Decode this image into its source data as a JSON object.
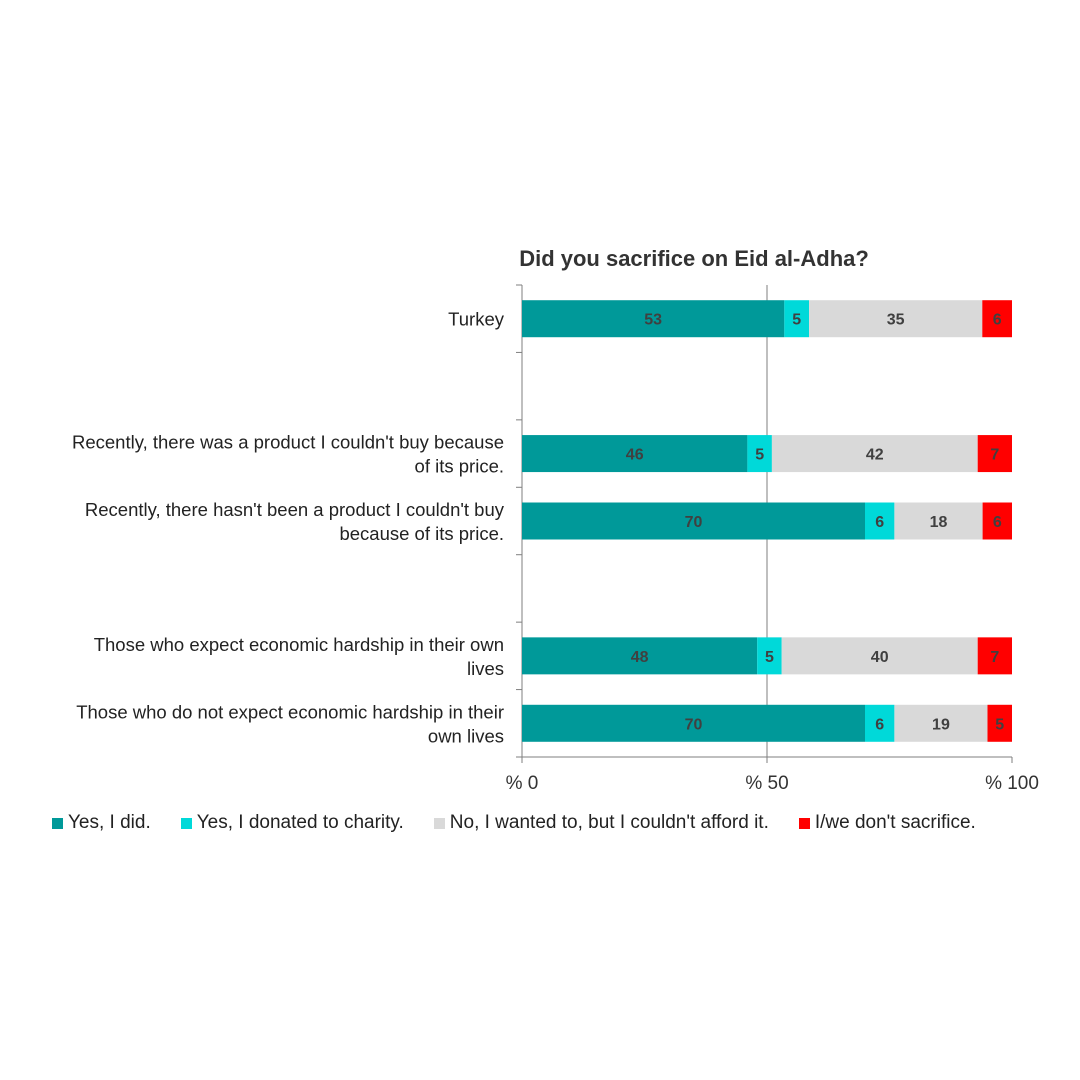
{
  "chart_data": {
    "type": "bar",
    "orientation": "horizontal",
    "stacked": true,
    "title": "Did you sacrifice on Eid al-Adha?",
    "xlabel": "",
    "ylabel": "",
    "xlim": [
      0,
      100
    ],
    "x_ticks": [
      {
        "value": 0,
        "label": "% 0"
      },
      {
        "value": 50,
        "label": "% 50"
      },
      {
        "value": 100,
        "label": "% 100"
      }
    ],
    "grid": "vertical line at 50",
    "legend_position": "bottom",
    "categories": [
      [
        "Turkey"
      ],
      [],
      [
        "Recently, there was a product I couldn't buy because",
        "of its price."
      ],
      [
        "Recently, there hasn't been a product I couldn't buy",
        "because of its price."
      ],
      [],
      [
        "Those who expect economic hardship in their own",
        "lives"
      ],
      [
        "Those who do not expect economic hardship in their",
        "own lives"
      ]
    ],
    "series": [
      {
        "name": "Yes, I did.",
        "color": "#009999",
        "values": [
          53,
          null,
          46,
          70,
          null,
          48,
          70
        ]
      },
      {
        "name": "Yes, I donated to charity.",
        "color": "#00D9D9",
        "values": [
          5,
          null,
          5,
          6,
          null,
          5,
          6
        ]
      },
      {
        "name": "No, I wanted to, but I couldn't afford it.",
        "color": "#D9D9D9",
        "values": [
          35,
          null,
          42,
          18,
          null,
          40,
          19
        ]
      },
      {
        "name": "I/we don't sacrifice.",
        "color": "#FF0000",
        "values": [
          6,
          null,
          7,
          6,
          null,
          7,
          5
        ]
      }
    ]
  }
}
